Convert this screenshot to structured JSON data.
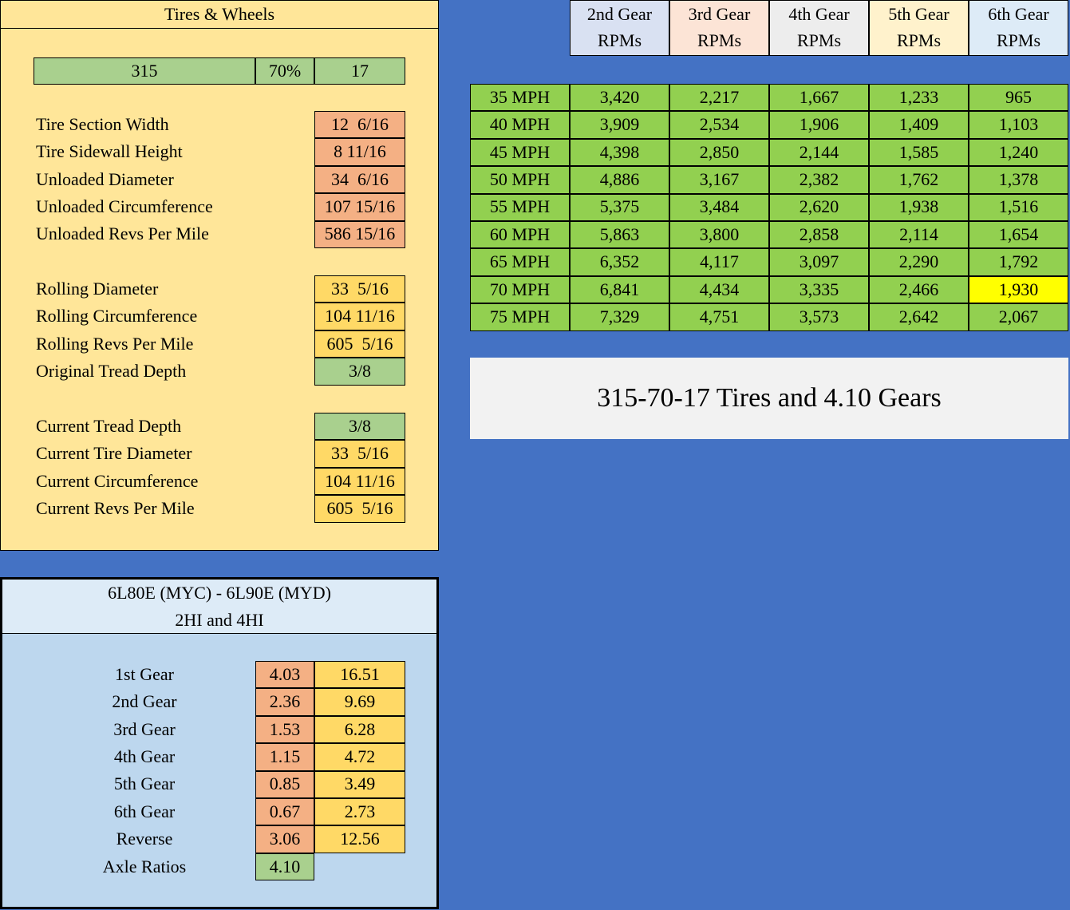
{
  "tires_wheels": {
    "title": "Tires & Wheels",
    "size": [
      "315",
      "70%",
      "17"
    ],
    "groups": [
      [
        {
          "label": "Tire Section Width",
          "value": "12  6/16"
        },
        {
          "label": "Tire Sidewall Height",
          "value": "8 11/16"
        },
        {
          "label": "Unloaded Diameter",
          "value": "34  6/16"
        },
        {
          "label": "Unloaded Circumference",
          "value": "107 15/16"
        },
        {
          "label": "Unloaded Revs Per Mile",
          "value": "586 15/16"
        }
      ],
      [
        {
          "label": "Rolling Diameter",
          "value": "33  5/16"
        },
        {
          "label": "Rolling Circumference",
          "value": "104 11/16"
        },
        {
          "label": "Rolling Revs Per Mile",
          "value": "605  5/16"
        },
        {
          "label": "Original Tread Depth",
          "value": "3/8"
        }
      ],
      [
        {
          "label": "Current Tread Depth",
          "value": "3/8"
        },
        {
          "label": "Current Tire Diameter",
          "value": "33  5/16"
        },
        {
          "label": "Current Circumference",
          "value": "104 11/16"
        },
        {
          "label": "Current Revs Per Mile",
          "value": "605  5/16"
        }
      ]
    ]
  },
  "transmission": {
    "title": "6L80E (MYC) - 6L90E (MYD)",
    "subtitle": "2HI and 4HI",
    "gears": [
      {
        "label": "1st Gear",
        "ratio": "4.03",
        "final": "16.51"
      },
      {
        "label": "2nd Gear",
        "ratio": "2.36",
        "final": "9.69"
      },
      {
        "label": "3rd Gear",
        "ratio": "1.53",
        "final": "6.28"
      },
      {
        "label": "4th Gear",
        "ratio": "1.15",
        "final": "4.72"
      },
      {
        "label": "5th Gear",
        "ratio": "0.85",
        "final": "3.49"
      },
      {
        "label": "6th Gear",
        "ratio": "0.67",
        "final": "2.73"
      },
      {
        "label": "Reverse",
        "ratio": "3.06",
        "final": "12.56"
      }
    ],
    "axle": {
      "label": "Axle Ratios",
      "value": "4.10"
    }
  },
  "rpm_table": {
    "columns": [
      [
        "2nd Gear",
        "RPMs"
      ],
      [
        "3rd Gear",
        "RPMs"
      ],
      [
        "4th Gear",
        "RPMs"
      ],
      [
        "5th Gear",
        "RPMs"
      ],
      [
        "6th Gear",
        "RPMs"
      ]
    ],
    "rows": [
      {
        "speed": "35 MPH",
        "values": [
          "3,420",
          "2,217",
          "1,667",
          "1,233",
          "965"
        ]
      },
      {
        "speed": "40 MPH",
        "values": [
          "3,909",
          "2,534",
          "1,906",
          "1,409",
          "1,103"
        ]
      },
      {
        "speed": "45 MPH",
        "values": [
          "4,398",
          "2,850",
          "2,144",
          "1,585",
          "1,240"
        ]
      },
      {
        "speed": "50 MPH",
        "values": [
          "4,886",
          "3,167",
          "2,382",
          "1,762",
          "1,378"
        ]
      },
      {
        "speed": "55 MPH",
        "values": [
          "5,375",
          "3,484",
          "2,620",
          "1,938",
          "1,516"
        ]
      },
      {
        "speed": "60 MPH",
        "values": [
          "5,863",
          "3,800",
          "2,858",
          "2,114",
          "1,654"
        ]
      },
      {
        "speed": "65 MPH",
        "values": [
          "6,352",
          "4,117",
          "3,097",
          "2,290",
          "1,792"
        ]
      },
      {
        "speed": "70 MPH",
        "values": [
          "6,841",
          "4,434",
          "3,335",
          "2,466",
          "1,930"
        ]
      },
      {
        "speed": "75 MPH",
        "values": [
          "7,329",
          "4,751",
          "3,573",
          "2,642",
          "2,067"
        ]
      }
    ]
  },
  "caption": "315-70-17 Tires and 4.10 Gears"
}
